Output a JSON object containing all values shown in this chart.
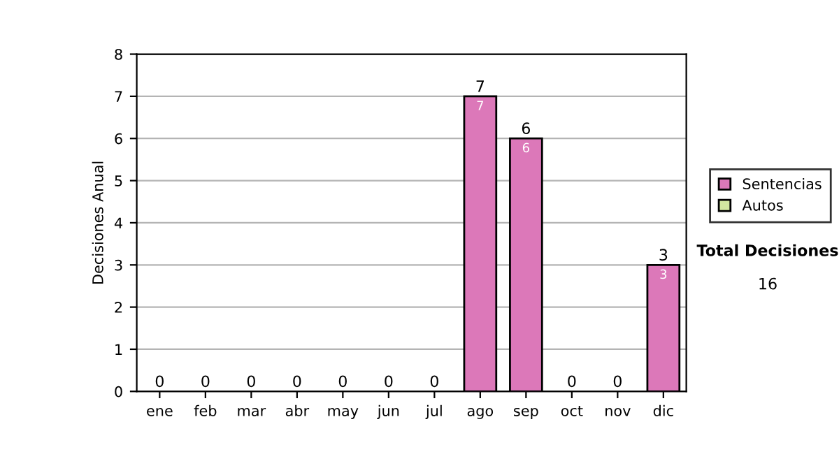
{
  "chart_data": {
    "type": "bar",
    "stacked": true,
    "ylabel": "Decisiones Anual",
    "categories": [
      "ene",
      "feb",
      "mar",
      "abr",
      "may",
      "jun",
      "jul",
      "ago",
      "sep",
      "oct",
      "nov",
      "dic"
    ],
    "series": [
      {
        "name": "Sentencias",
        "color": "#dc78b9",
        "values": [
          0,
          0,
          0,
          0,
          0,
          0,
          0,
          7,
          6,
          0,
          0,
          3
        ],
        "value_labels": [
          null,
          null,
          null,
          null,
          null,
          null,
          null,
          "7",
          "6",
          null,
          null,
          "3"
        ]
      },
      {
        "name": "Autos",
        "color": "#d2e6a0",
        "values": [
          0,
          0,
          0,
          0,
          0,
          0,
          0,
          0,
          0,
          0,
          0,
          0
        ]
      }
    ],
    "totals": [
      "0",
      "0",
      "0",
      "0",
      "0",
      "0",
      "0",
      "7",
      "6",
      "0",
      "0",
      "3"
    ],
    "ylim": [
      0,
      8
    ],
    "yticks": [
      0,
      1,
      2,
      3,
      4,
      5,
      6,
      7,
      8
    ],
    "grid": "y",
    "legend": "right",
    "annotations": [
      "Total Decisiones",
      "16"
    ]
  }
}
